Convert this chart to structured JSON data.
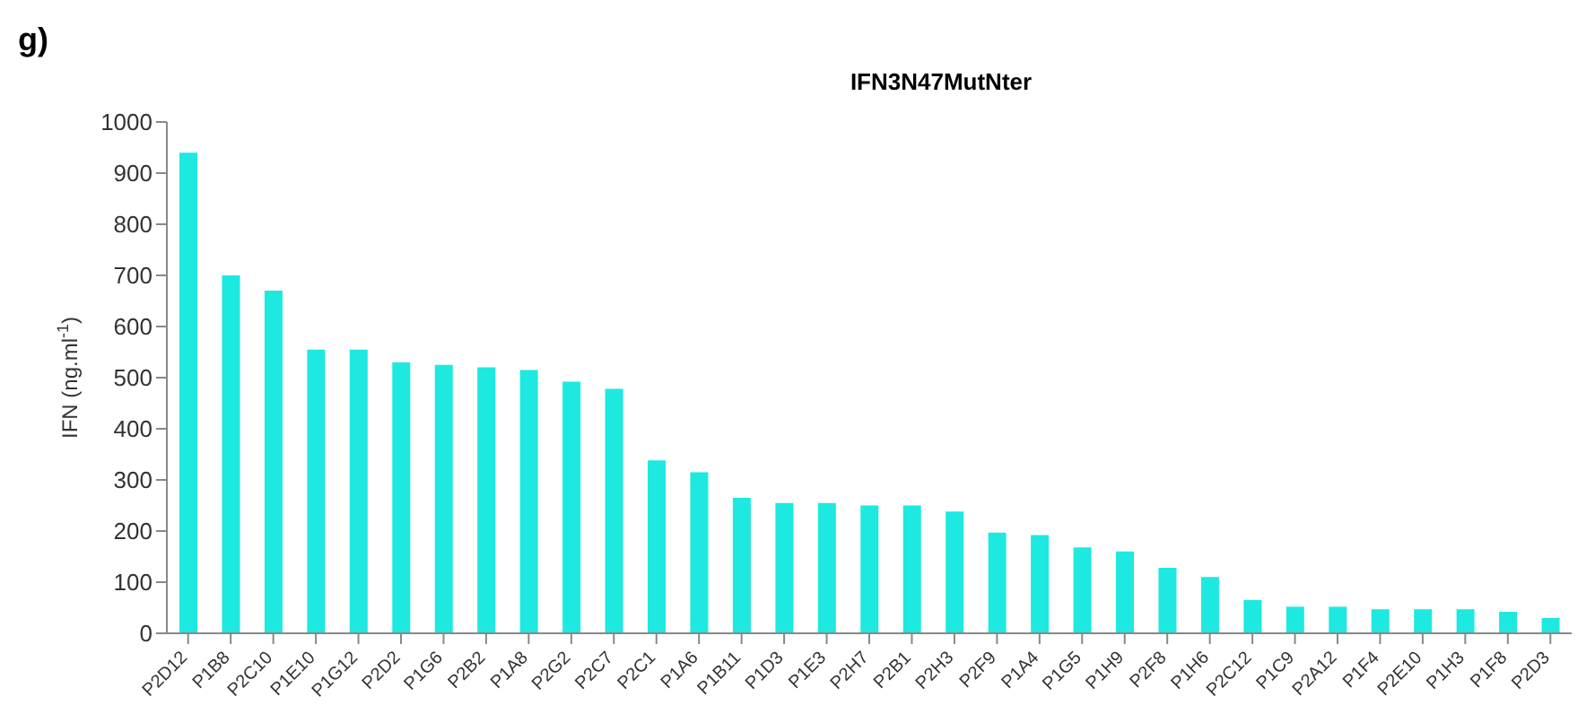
{
  "chart_data": {
    "type": "bar",
    "title": "IFN3N47MutNter",
    "ylabel": "IFN (ng.ml$^{-1}$)",
    "annotations": [
      "g)"
    ],
    "categories": [
      "P2D12",
      "P1B8",
      "P2C10",
      "P1E10",
      "P1G12",
      "P2D2",
      "P1G6",
      "P2B2",
      "P1A8",
      "P2G2",
      "P2C7",
      "P2C1",
      "P1A6",
      "P1B11",
      "P1D3",
      "P1E3",
      "P2H7",
      "P2B1",
      "P2H3",
      "P2F9",
      "P1A4",
      "P1G5",
      "P1H9",
      "P2F8",
      "P1H6",
      "P2C12",
      "P1C9",
      "P2A12",
      "P1F4",
      "P2E10",
      "P1H3",
      "P1F8",
      "P2D3"
    ],
    "values": [
      940,
      700,
      670,
      555,
      555,
      530,
      525,
      520,
      515,
      492,
      478,
      338,
      315,
      265,
      255,
      255,
      250,
      250,
      238,
      197,
      192,
      168,
      160,
      128,
      110,
      65,
      52,
      52,
      47,
      47,
      47,
      42,
      30
    ],
    "color": "#1de9e0",
    "ylim": [
      0,
      1000
    ],
    "yticks": [
      0,
      100,
      200,
      300,
      400,
      500,
      600,
      700,
      800,
      900,
      1000
    ],
    "grid": false,
    "legend": false
  }
}
